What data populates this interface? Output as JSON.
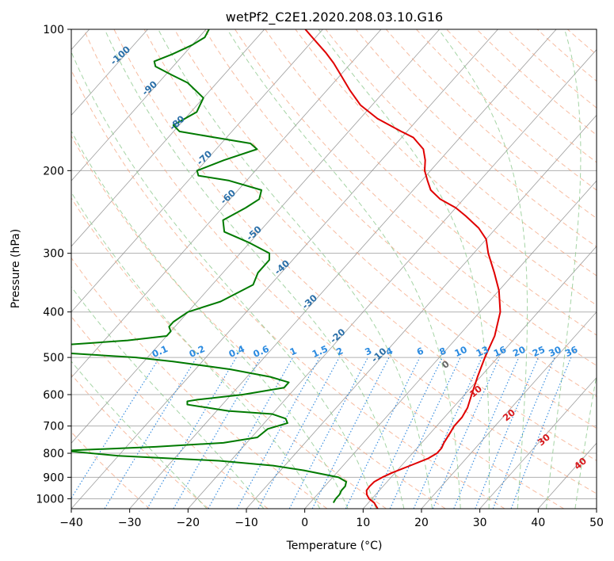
{
  "chart_data": {
    "type": "line",
    "chart_kind": "skew-T log-P diagram",
    "title": "wetPf2_C2E1.2020.208.03.10.G16",
    "xlabel": "Temperature (°C)",
    "ylabel": "Pressure (hPa)",
    "xlim": [
      -40,
      50
    ],
    "ylim": [
      1050,
      100
    ],
    "y_scale": "log",
    "grid": true,
    "x_ticks": [
      -40,
      -30,
      -20,
      -10,
      0,
      10,
      20,
      30,
      40,
      50
    ],
    "x_tick_labels": [
      "−40",
      "−30",
      "−20",
      "−10",
      "0",
      "10",
      "20",
      "30",
      "40",
      "50"
    ],
    "y_ticks": [
      100,
      200,
      300,
      400,
      500,
      600,
      700,
      800,
      900,
      1000
    ],
    "y_tick_labels": [
      "100",
      "200",
      "300",
      "400",
      "500",
      "600",
      "700",
      "800",
      "900",
      "1000"
    ],
    "colors": {
      "temperature": "#e00000",
      "dewpoint": "#007a00",
      "isotherm": "#8c8c8c",
      "dry_adiabat": "#f4a582",
      "moist_adiabat": "#8fc98f",
      "mixing_ratio": "#3b8fe0",
      "isotherm_label": "#2a6fa8",
      "mixing_label": "#2a8ae0",
      "moist_label": "#d7191c",
      "zero_label": "#666666"
    },
    "isotherm_labels": [
      "-100",
      "-90",
      "-80",
      "-70",
      "-60",
      "-50",
      "-40",
      "-30",
      "-20",
      "-10"
    ],
    "isotherm_label_values": [
      -100,
      -90,
      -80,
      -70,
      -60,
      -50,
      -40,
      -30,
      -20,
      -10
    ],
    "mixing_ratio_labels": [
      "0.1",
      "0.2",
      "0.4",
      "0.6",
      "1",
      "1.5",
      "2",
      "3",
      "4",
      "6",
      "8",
      "10",
      "13",
      "16",
      "20",
      "25",
      "30",
      "36"
    ],
    "moist_adiabat_labels": [
      "0",
      "10",
      "20",
      "30",
      "40"
    ],
    "series": [
      {
        "name": "Temperature",
        "points": [
          [
            1050,
            12.5
          ],
          [
            1020,
            11.0
          ],
          [
            1000,
            9.5
          ],
          [
            980,
            8.5
          ],
          [
            960,
            7.8
          ],
          [
            940,
            7.7
          ],
          [
            920,
            7.8
          ],
          [
            900,
            8.5
          ],
          [
            880,
            9.5
          ],
          [
            850,
            11.5
          ],
          [
            820,
            13.5
          ],
          [
            800,
            14.2
          ],
          [
            780,
            14.2
          ],
          [
            760,
            13.8
          ],
          [
            720,
            13.3
          ],
          [
            700,
            13.0
          ],
          [
            670,
            13.0
          ],
          [
            640,
            12.5
          ],
          [
            600,
            11.2
          ],
          [
            550,
            9.5
          ],
          [
            500,
            7.8
          ],
          [
            450,
            6.2
          ],
          [
            400,
            3.5
          ],
          [
            360,
            0.0
          ],
          [
            330,
            -3.5
          ],
          [
            300,
            -7.5
          ],
          [
            280,
            -10.0
          ],
          [
            265,
            -13.0
          ],
          [
            250,
            -17.0
          ],
          [
            240,
            -20.0
          ],
          [
            230,
            -24.0
          ],
          [
            220,
            -27.0
          ],
          [
            210,
            -29.0
          ],
          [
            200,
            -31.0
          ],
          [
            190,
            -32.5
          ],
          [
            180,
            -34.5
          ],
          [
            170,
            -38.0
          ],
          [
            165,
            -41.0
          ],
          [
            155,
            -47.0
          ],
          [
            145,
            -52.0
          ],
          [
            135,
            -56.0
          ],
          [
            125,
            -60.0
          ],
          [
            118,
            -63.0
          ],
          [
            112,
            -66.0
          ],
          [
            105,
            -70.0
          ],
          [
            100,
            -73.0
          ]
        ]
      },
      {
        "name": "Dewpoint",
        "points": [
          [
            1020,
            4.0
          ],
          [
            1000,
            3.8
          ],
          [
            980,
            3.8
          ],
          [
            960,
            3.5
          ],
          [
            940,
            3.5
          ],
          [
            920,
            3.0
          ],
          [
            900,
            1.0
          ],
          [
            870,
            -6.0
          ],
          [
            850,
            -12.0
          ],
          [
            830,
            -22.0
          ],
          [
            810,
            -40.0
          ],
          [
            790,
            -50.0
          ],
          [
            775,
            -35.0
          ],
          [
            760,
            -24.0
          ],
          [
            740,
            -19.0
          ],
          [
            710,
            -18.5
          ],
          [
            690,
            -16.0
          ],
          [
            675,
            -17.0
          ],
          [
            660,
            -20.0
          ],
          [
            650,
            -28.0
          ],
          [
            630,
            -36.0
          ],
          [
            620,
            -36.5
          ],
          [
            615,
            -35.0
          ],
          [
            600,
            -28.0
          ],
          [
            580,
            -22.0
          ],
          [
            565,
            -22.0
          ],
          [
            550,
            -26.0
          ],
          [
            530,
            -34.0
          ],
          [
            510,
            -45.0
          ],
          [
            500,
            -52.0
          ],
          [
            490,
            -64.0
          ],
          [
            470,
            -66.0
          ],
          [
            460,
            -56.0
          ],
          [
            450,
            -50.0
          ],
          [
            440,
            -50.0
          ],
          [
            430,
            -51.0
          ],
          [
            420,
            -51.0
          ],
          [
            400,
            -50.0
          ],
          [
            380,
            -46.0
          ],
          [
            350,
            -43.0
          ],
          [
            330,
            -44.0
          ],
          [
            310,
            -44.0
          ],
          [
            300,
            -45.0
          ],
          [
            285,
            -50.0
          ],
          [
            270,
            -56.0
          ],
          [
            255,
            -58.0
          ],
          [
            240,
            -56.0
          ],
          [
            230,
            -55.0
          ],
          [
            220,
            -56.0
          ],
          [
            210,
            -63.0
          ],
          [
            205,
            -69.0
          ],
          [
            200,
            -70.0
          ],
          [
            190,
            -67.0
          ],
          [
            180,
            -63.0
          ],
          [
            175,
            -65.0
          ],
          [
            170,
            -72.0
          ],
          [
            165,
            -79.0
          ],
          [
            160,
            -81.0
          ],
          [
            150,
            -79.0
          ],
          [
            140,
            -80.0
          ],
          [
            130,
            -85.0
          ],
          [
            125,
            -89.0
          ],
          [
            120,
            -93.0
          ],
          [
            117,
            -94.0
          ],
          [
            113,
            -92.0
          ],
          [
            108,
            -90.0
          ],
          [
            104,
            -89.0
          ],
          [
            100,
            -89.5
          ]
        ]
      }
    ]
  }
}
